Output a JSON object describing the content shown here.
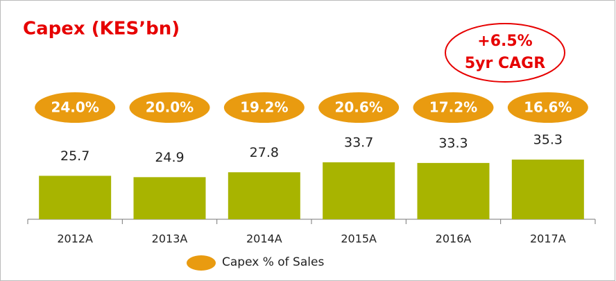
{
  "chart_data": {
    "type": "bar",
    "title": "Capex (KES’bn)",
    "annotation": [
      "+6.5%",
      "5yr CAGR"
    ],
    "categories": [
      "2012A",
      "2013A",
      "2014A",
      "2015A",
      "2016A",
      "2017A"
    ],
    "values": [
      25.7,
      24.9,
      27.8,
      33.7,
      33.3,
      35.3
    ],
    "color": "#a8b400",
    "series": [
      {
        "name": "Capex % of Sales",
        "color": "#e99b10",
        "values": [
          24.0,
          20.0,
          19.2,
          20.6,
          17.2,
          16.6
        ],
        "value_labels": [
          "24.0%",
          "20.0%",
          "19.2%",
          "20.6%",
          "17.2%",
          "16.6%"
        ]
      }
    ]
  }
}
